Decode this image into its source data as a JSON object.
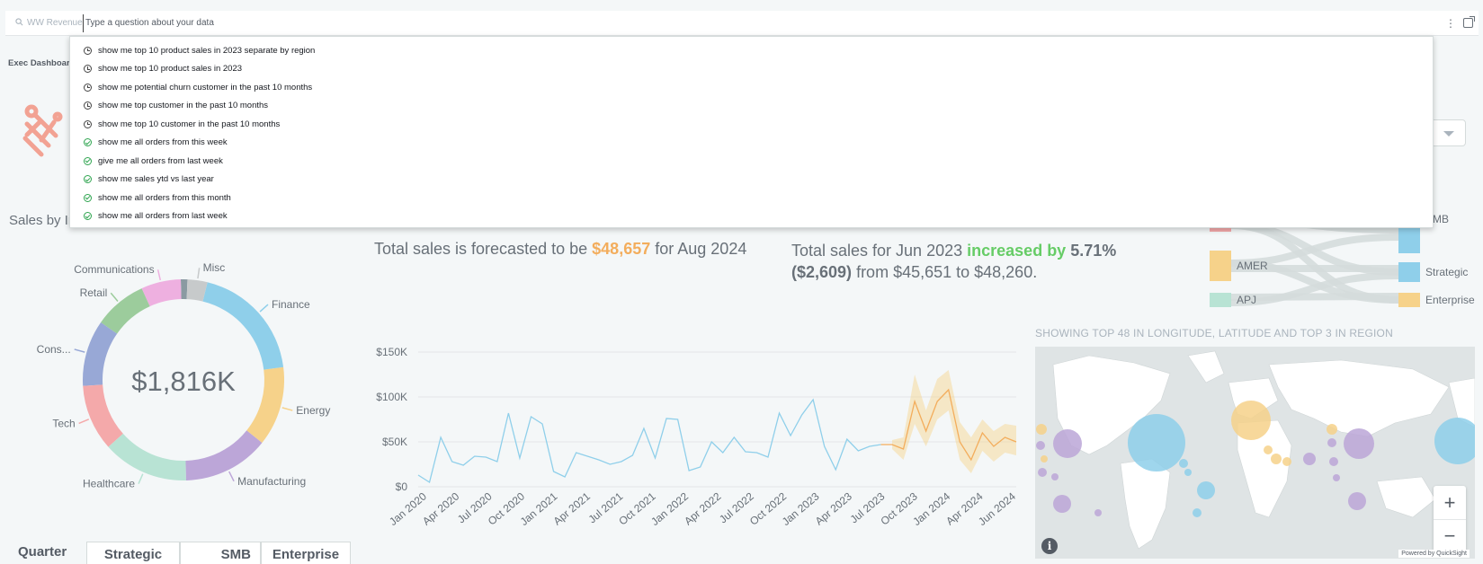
{
  "search": {
    "scope_label": "WW Revenue",
    "placeholder": "Type a question about your data"
  },
  "suggestions": [
    {
      "icon": "clock-icon",
      "text": "show me top 10 product sales in 2023 separate by region"
    },
    {
      "icon": "clock-icon",
      "text": "show me top 10 product sales in 2023"
    },
    {
      "icon": "clock-icon",
      "text": "show me potential churn customer in the past 10 months"
    },
    {
      "icon": "clock-icon",
      "text": "show me top customer in the past 10 months"
    },
    {
      "icon": "clock-icon",
      "text": "show me top 10 customer in the past 10 months"
    },
    {
      "icon": "check-circle-icon",
      "text": "show me all orders from this week"
    },
    {
      "icon": "check-circle-icon",
      "text": "give me all orders from last week"
    },
    {
      "icon": "check-circle-icon",
      "text": "show me sales ytd vs last year"
    },
    {
      "icon": "check-circle-icon",
      "text": "show me all orders from this month"
    },
    {
      "icon": "check-circle-icon",
      "text": "show me all orders from last week"
    }
  ],
  "sheet_tab": "Exec Dashboard",
  "sales_by_industry": {
    "title": "Sales by In",
    "total": "$1,816K",
    "segments": [
      {
        "label": "Misc",
        "value": 3,
        "color": "#c7cacb"
      },
      {
        "label": "Finance",
        "value": 18,
        "color": "#8fcfea"
      },
      {
        "label": "Energy",
        "value": 12,
        "color": "#f6d28a"
      },
      {
        "label": "Manufacturing",
        "value": 13,
        "color": "#bca6d8"
      },
      {
        "label": "Healthcare",
        "value": 13,
        "color": "#b8e3d4"
      },
      {
        "label": "Tech",
        "value": 10,
        "color": "#f4a9aa"
      },
      {
        "label": "Cons...",
        "value": 10,
        "color": "#98a8d6"
      },
      {
        "label": "Retail",
        "value": 8,
        "color": "#9ccc9c"
      },
      {
        "label": "Communications",
        "value": 6,
        "color": "#eeb0e0"
      },
      {
        "label": "",
        "value": 1,
        "color": "#8a9aa2"
      }
    ]
  },
  "forecast": {
    "prefix": "Total sales is forecasted to be",
    "value": "$48,657",
    "suffix": "for Aug 2024"
  },
  "kpi": {
    "prefix": "Total sales for Jun 2023",
    "change_text": "increased by",
    "pct": "5.71%",
    "abs": "($2,609)",
    "suffix": "from $45,651 to $48,260."
  },
  "chart_data": {
    "type": "line",
    "y_ticks": [
      "$0",
      "$50K",
      "$100K",
      "$150K"
    ],
    "ylim": [
      0,
      150000
    ],
    "x_labels": [
      "Jan 2020",
      "Apr 2020",
      "Jul 2020",
      "Oct 2020",
      "Jan 2021",
      "Apr 2021",
      "Jul 2021",
      "Oct 2021",
      "Jan 2022",
      "Apr 2022",
      "Jul 2022",
      "Oct 2022",
      "Jan 2023",
      "Apr 2023",
      "Jul 2023",
      "Oct 2023",
      "Jan 2024",
      "Apr 2024",
      "Jun 2024"
    ],
    "actual": [
      13000,
      5000,
      55000,
      28000,
      24000,
      34000,
      33000,
      28000,
      82000,
      32000,
      78000,
      70000,
      17000,
      11000,
      38000,
      34000,
      30000,
      25000,
      28000,
      35000,
      65000,
      32000,
      76000,
      75000,
      18000,
      22000,
      50000,
      38000,
      55000,
      39000,
      38000,
      33000,
      82000,
      57000,
      80000,
      97000,
      45000,
      19000,
      53000,
      40000,
      45000,
      47000
    ],
    "forecast": [
      47000,
      42000,
      95000,
      62000,
      95000,
      108000,
      50000,
      30000,
      60000,
      45000,
      55000,
      50000
    ],
    "forecast_upper": [
      52000,
      55000,
      125000,
      85000,
      120000,
      130000,
      72000,
      55000,
      75000,
      62000,
      70000,
      68000
    ],
    "forecast_lower": [
      42000,
      30000,
      70000,
      45000,
      75000,
      85000,
      30000,
      15000,
      40000,
      28000,
      38000,
      35000
    ]
  },
  "sankey": {
    "left_nodes": [
      {
        "label": "",
        "color": "#f4a9aa"
      },
      {
        "label": "AMER",
        "color": "#f6d28a"
      },
      {
        "label": "APJ",
        "color": "#b8e3d4"
      }
    ],
    "right_nodes": [
      {
        "label": "SMB",
        "color": "#8fcfea"
      },
      {
        "label": "Strategic",
        "color": "#8fcfea"
      },
      {
        "label": "Enterprise",
        "color": "#f6d28a"
      }
    ]
  },
  "map": {
    "title": "SHOWING TOP 48 IN LONGITUDE, LATITUDE AND TOP 3 IN REGION",
    "zoom_in": "+",
    "zoom_out": "−",
    "info": "i",
    "powered_by": "Powered by QuickSight"
  },
  "table": {
    "headers": [
      "Quarter",
      "Strategic",
      "SMB",
      "Enterprise"
    ]
  }
}
